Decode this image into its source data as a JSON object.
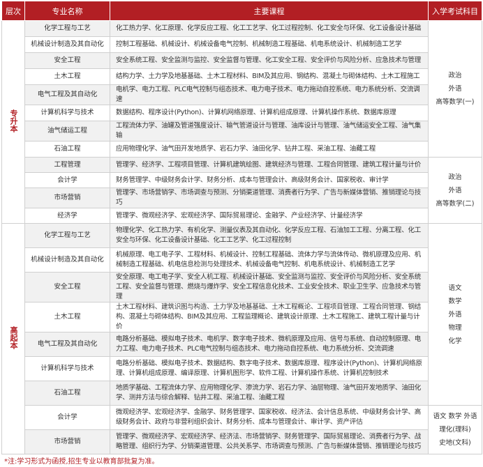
{
  "header": {
    "level": "层次",
    "major": "专业名称",
    "courses": "主要课程",
    "exam": "入学考试科目"
  },
  "groups": [
    {
      "level": "专升本",
      "sections": [
        {
          "exam": [
            "政治",
            "外语",
            "高等数学(一)"
          ],
          "rows": [
            {
              "major": "化学工程与工艺",
              "courses": "化工热力学、化工原理、化学反应工程、化工工艺学、化工过程控制、化工安全与环保、化工设备设计基础"
            },
            {
              "major": "机械设计制造及其自动化",
              "courses": "控制工程基础、机械设计、机械设备电气控制、机械制造工程基础、机电系统设计、机械制造工艺学"
            },
            {
              "major": "安全工程",
              "courses": "安全系统工程、安全监测与监控、安全监督与管理、化工安全工程、安全评价与风险分析、应急技术与管理"
            },
            {
              "major": "土木工程",
              "courses": "结构力学、土力学及地基基础、土木工程材料、BIM及其应用、钢结构、混凝土与砌体结构、土木工程施工"
            },
            {
              "major": "电气工程及其自动化",
              "courses": "电机学、电力工程、PLC电气控制与组态技术、电力电子技术、电力拖动自控系统、电力系统分析、交流调速"
            },
            {
              "major": "计算机科学与技术",
              "courses": "数据结构、程序设计(Python)、计算机网络原理、计算机组成原理、计算机操作系统、数据库原理"
            },
            {
              "major": "油气储运工程",
              "courses": "工程流体力学、油罐及管道强度设计、输气管道设计与管理、油库设计与管理、油气储运安全工程、油气集输"
            },
            {
              "major": "石油工程",
              "courses": "应用物理化学、油气田开发地质学、岩石力学、油田化学、钻井工程、采油工程、油藏工程"
            }
          ]
        },
        {
          "exam": [
            "政治",
            "外语",
            "高等数学(二)"
          ],
          "rows": [
            {
              "major": "工程管理",
              "courses": "管理学、经济学、工程项目管理、计算机建筑绘图、建筑经济与管理、工程合同管理、建筑工程计量与计价"
            },
            {
              "major": "会计学",
              "courses": "财务管理学、中级财务会计学、财务分析、成本与管理会计、高级财务会计、国家税收、审计学"
            },
            {
              "major": "市场营销",
              "courses": "管理学、市场营销学、市场调查与预测、分销渠道管理、消费者行为学、广告与新媒体营销、推销理论与技巧"
            },
            {
              "major": "经济学",
              "courses": "管理学、微观经济学、宏观经济学、国际贸易理论、金融学、产业经济学、计量经济学"
            }
          ]
        }
      ]
    },
    {
      "level": "高起本",
      "sections": [
        {
          "exam": [
            "语文",
            "数学",
            "外语",
            "物理",
            "化学"
          ],
          "rows": [
            {
              "major": "化学工程与工艺",
              "courses": "物理化学、化工热力学、有机化学、测量仪表及其自动化、化学反应工程、石油加工工程、分离工程、化工安全与环保、化工设备设计基础、化工工艺学、化工过程控制"
            },
            {
              "major": "机械设计制造及其自动化",
              "courses": "机械原理、电工电子学、工程材料、机械设计、控制工程基础、流体力学与流体传动、微机原理及应用、机械制造工程基础、机电信息检测与处理技术、机械设备电气控制、机电系统设计、机械制造工艺学"
            },
            {
              "major": "安全工程",
              "courses": "安全原理、电工电子学、安全人机工程、机械设计基础、安全监测与监控、安全评价与风险分析、安全系统工程、安全监督与管理、燃烧与爆炸学、安全工程信息化技术、工业安全技术、职业卫生学、应急技术与管理"
            },
            {
              "major": "土木工程",
              "courses": "土木工程材料、建筑识图与构造、土力学及地基基础、土木工程概论、工程项目管理、工程合同管理、钢结构、混凝土与砌体结构、BIM及其应用、工程监理概论、建筑设计原理、土木工程施工、建筑工程计量与计价"
            },
            {
              "major": "电气工程及其自动化",
              "courses": "电路分析基础、模拟电子技术、电机学、数字电子技术、微机原理及应用、信号与系统、自动控制原理、电力工程、电力电子技术、PLC电气控制与组态技术、电力拖动自控系统、电力系统分析、交流调速"
            },
            {
              "major": "计算机科学与技术",
              "courses": "电路分析基础、模拟电子技术、数据结构、数字电子技术、数据库原理、程序设计(Python)、计算机网络原理、计算机组成原理、编译原理、计算机图形学、软件工程、计算机操作系统、计算机控制技术"
            },
            {
              "major": "石油工程",
              "courses": "地质学基础、工程流体力学、应用物理化学、渗流力学、岩石力学、油层物理、油气田开发地质学、油田化学、测井方法与综合解释、钻井工程、采油工程、油藏工程"
            }
          ]
        },
        {
          "exam": [
            "语文 数学 外语",
            "理化(理科)",
            "史地(文科)"
          ],
          "rows": [
            {
              "major": "会计学",
              "courses": "微观经济学、宏观经济学、金融学、财务管理学、国家税收、经济法、会计信息系统、中级财务会计学、高级财务会计、政府与非营利组织会计、财务分析、成本与管理会计、审计学、资产评估"
            },
            {
              "major": "市场营销",
              "courses": "管理学、微观经济学、宏观经济学、经济法、市场营销学、财务管理学、国际贸易理论、消费者行为学、战略管理、组织行为学、分销渠道管理、公共关系学、市场调查与预测、广告与新媒体营销、推销理论与技巧"
            }
          ]
        }
      ]
    }
  ],
  "note": "*注:学习形式为函授,招生专业以教育部批复为准。",
  "colors": {
    "accent": "#b21f24",
    "stripe": "#f1f1f1",
    "border": "#cfcfcf"
  }
}
